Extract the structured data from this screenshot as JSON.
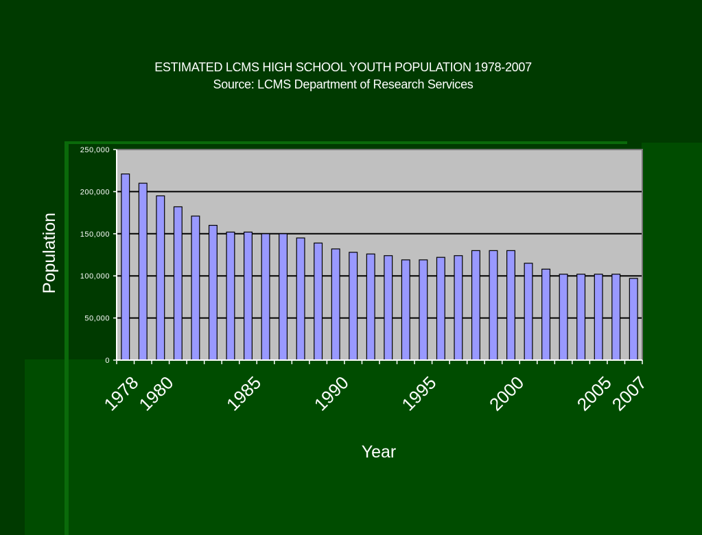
{
  "colors": {
    "background": "#003a00",
    "panel": "#004c00",
    "plot_area": "#c0c0c0",
    "bar_fill": "#9999ff",
    "bar_stroke": "#000000",
    "text": "#ffffff"
  },
  "title": {
    "line1": "ESTIMATED LCMS HIGH SCHOOL YOUTH POPULATION 1978-2007",
    "line2": "Source: LCMS Department of Research Services"
  },
  "chart_data": {
    "type": "bar",
    "title": "ESTIMATED LCMS HIGH SCHOOL YOUTH POPULATION 1978-2007",
    "subtitle": "Source: LCMS Department of Research Services",
    "xlabel": "Year",
    "ylabel": "Population",
    "ylim": [
      0,
      250000
    ],
    "yticks": [
      0,
      50000,
      100000,
      150000,
      200000,
      250000
    ],
    "ytick_labels": [
      "0",
      "50,000",
      "100,000",
      "150,000",
      "200,000",
      "250,000"
    ],
    "xtick_labels": [
      {
        "label": "1978",
        "year": 1978
      },
      {
        "label": "1980",
        "year": 1980
      },
      {
        "label": "1985",
        "year": 1985
      },
      {
        "label": "1990",
        "year": 1990
      },
      {
        "label": "1995",
        "year": 1995
      },
      {
        "label": "2000",
        "year": 2000
      },
      {
        "label": "2005",
        "year": 2005
      },
      {
        "label": "2007",
        "year": 2007
      }
    ],
    "grid": true,
    "legend": "none",
    "categories": [
      1978,
      1979,
      1980,
      1981,
      1982,
      1983,
      1984,
      1985,
      1986,
      1987,
      1988,
      1989,
      1990,
      1991,
      1992,
      1993,
      1994,
      1995,
      1996,
      1997,
      1998,
      1999,
      2000,
      2001,
      2002,
      2003,
      2004,
      2005,
      2006,
      2007
    ],
    "values": [
      221000,
      210000,
      195000,
      182000,
      171000,
      160000,
      152000,
      152000,
      150000,
      150000,
      145000,
      139000,
      132000,
      128000,
      126000,
      124000,
      119000,
      119000,
      122000,
      124000,
      130000,
      130000,
      130000,
      115000,
      108000,
      102000,
      102000,
      102000,
      102000,
      97000
    ]
  }
}
